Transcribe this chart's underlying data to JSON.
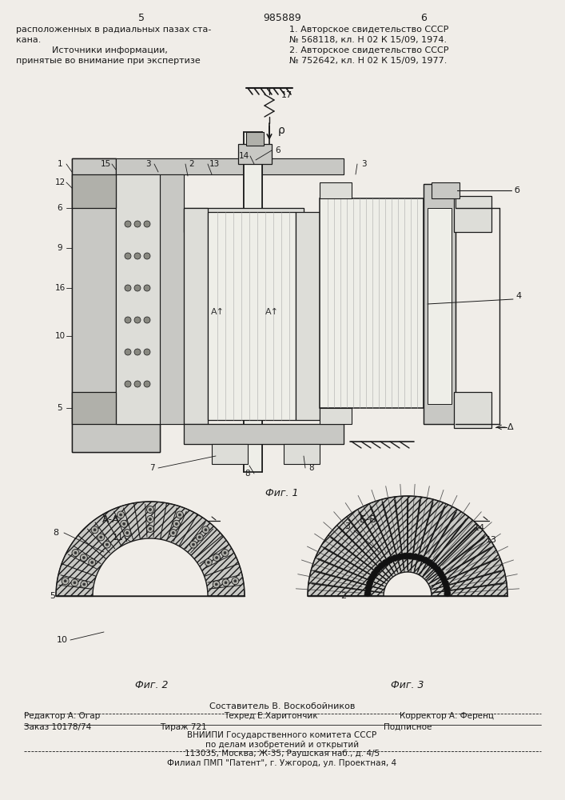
{
  "page_num_left": "5",
  "page_num_center": "985889",
  "page_num_right": "6",
  "text_left_1": "расположенных в радиальных пазах ста-",
  "text_left_2": "кана.",
  "text_left_3": "Источники информации,",
  "text_left_4": "принятые во внимание при экспертизе",
  "text_right_1": "1. Авторское свидетельство СССР",
  "text_right_2": "№ 568118, кл. Н 02 К 15/09, 1974.",
  "text_right_3": "2. Авторское свидетельство СССР",
  "text_right_4": "№ 752642, кл. Н 02 К 15/09, 1977.",
  "fig1_caption": "Фиг. 1",
  "fig2_caption": "Фиг. 2",
  "fig3_caption": "Фиг. 3",
  "label_aa": "А-А",
  "label_bb": "Б-Б",
  "label_17": "17",
  "label_rho": "ρ",
  "label_4": "4",
  "label_delta": "Д",
  "label_6b_right": "б",
  "footer_1": "Составитель В. Воскобойников",
  "footer_2l": "Редактор А. Огар",
  "footer_2m": "Техред Е.Харитончик",
  "footer_2r": "Корректор А. Ференц",
  "footer_3l": "Заказ 10178/74",
  "footer_3m": "Тираж 721",
  "footer_3r": "Подписное",
  "footer_4": "ВНИИПИ Государственного комитета СССР",
  "footer_5": "по делам изобретений и открытий",
  "footer_6": "113035, Москва, Ж-35, Раушская наб., д. 4/5",
  "footer_7": "Филиал ПМП \"Патент\", г. Ужгород, ул. Проектная, 4",
  "bg": "#f0ede8",
  "lc": "#1a1a1a",
  "hatch_dark": "#2a2a2a",
  "gray_fill": "#c8c8c4",
  "gray_mid": "#b0b0aa",
  "gray_light": "#ddddd8",
  "white_fill": "#eeeee8"
}
